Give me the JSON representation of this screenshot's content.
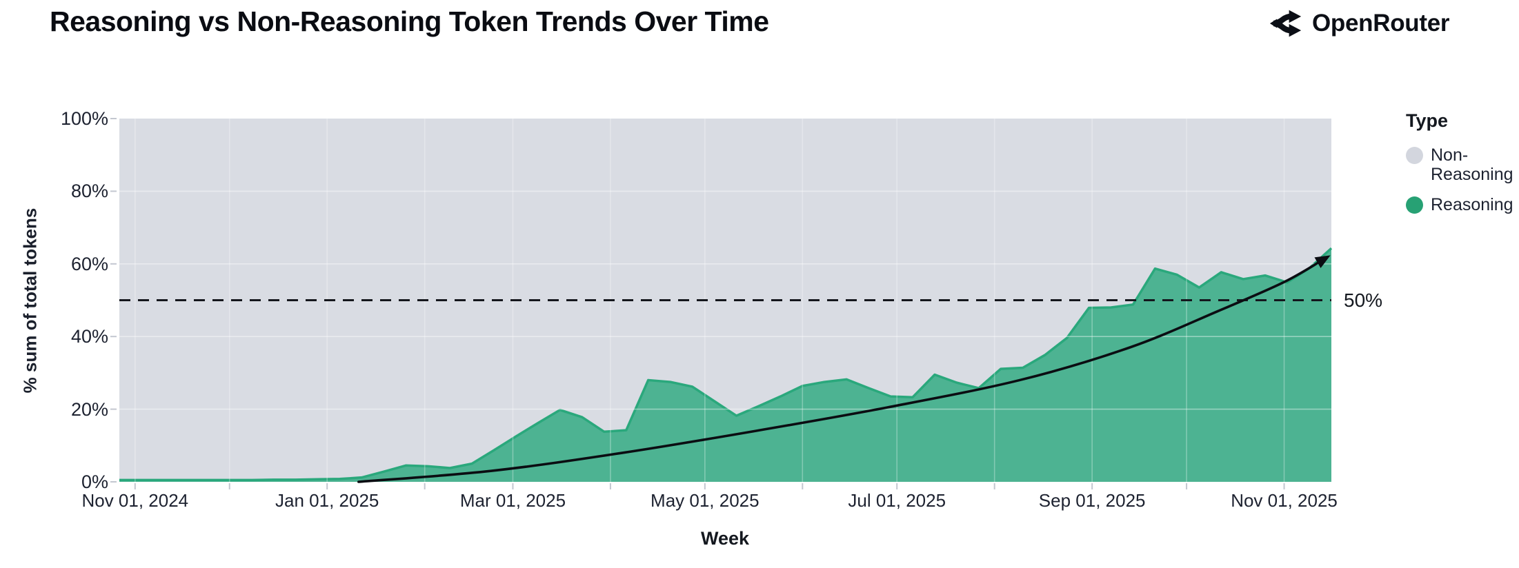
{
  "header": {
    "title": "Reasoning vs Non-Reasoning Token Trends Over Time",
    "brand": "OpenRouter"
  },
  "chart_data": {
    "type": "area",
    "stacked_percent": true,
    "title": "Reasoning vs Non-Reasoning Token Trends Over Time",
    "xlabel": "Week",
    "ylabel": "% sum of total tokens",
    "x_start": "2024-10-27",
    "x_end": "2025-11-16",
    "ylim": [
      0,
      100
    ],
    "grid": true,
    "legend_position": "right",
    "legend": {
      "title": "Type",
      "items": [
        {
          "label": "Non-Reasoning",
          "color": "#d3d6de"
        },
        {
          "label": "Reasoning",
          "color": "#27a174"
        }
      ]
    },
    "y_ticks": [
      {
        "label": "0%",
        "value": 0
      },
      {
        "label": "20%",
        "value": 20
      },
      {
        "label": "40%",
        "value": 40
      },
      {
        "label": "60%",
        "value": 60
      },
      {
        "label": "80%",
        "value": 80
      },
      {
        "label": "100%",
        "value": 100
      }
    ],
    "x_ticks": [
      {
        "label": "Nov 01, 2024",
        "date": "2024-11-01"
      },
      {
        "label": "Jan 01, 2025",
        "date": "2025-01-01"
      },
      {
        "label": "Mar 01, 2025",
        "date": "2025-03-01"
      },
      {
        "label": "May 01, 2025",
        "date": "2025-05-01"
      },
      {
        "label": "Jul 01, 2025",
        "date": "2025-07-01"
      },
      {
        "label": "Sep 01, 2025",
        "date": "2025-09-01"
      },
      {
        "label": "Nov 01, 2025",
        "date": "2025-11-01"
      }
    ],
    "x_minor_ticks": [
      "2024-11-01",
      "2024-12-01",
      "2025-01-01",
      "2025-02-01",
      "2025-03-01",
      "2025-04-01",
      "2025-05-01",
      "2025-06-01",
      "2025-07-01",
      "2025-08-01",
      "2025-09-01",
      "2025-10-01",
      "2025-11-01"
    ],
    "series": [
      {
        "name": "Reasoning",
        "fill": "#4db392",
        "stroke": "#2aa87c",
        "dates": [
          "2024-10-27",
          "2024-11-03",
          "2024-11-10",
          "2024-11-17",
          "2024-11-24",
          "2024-12-01",
          "2024-12-08",
          "2024-12-15",
          "2024-12-22",
          "2024-12-29",
          "2025-01-05",
          "2025-01-12",
          "2025-01-19",
          "2025-01-26",
          "2025-02-02",
          "2025-02-09",
          "2025-02-16",
          "2025-02-23",
          "2025-03-02",
          "2025-03-09",
          "2025-03-16",
          "2025-03-23",
          "2025-03-30",
          "2025-04-06",
          "2025-04-13",
          "2025-04-20",
          "2025-04-27",
          "2025-05-04",
          "2025-05-11",
          "2025-05-18",
          "2025-05-25",
          "2025-06-01",
          "2025-06-08",
          "2025-06-15",
          "2025-06-22",
          "2025-06-29",
          "2025-07-06",
          "2025-07-13",
          "2025-07-20",
          "2025-07-27",
          "2025-08-03",
          "2025-08-10",
          "2025-08-17",
          "2025-08-24",
          "2025-08-31",
          "2025-09-07",
          "2025-09-14",
          "2025-09-21",
          "2025-09-28",
          "2025-10-05",
          "2025-10-12",
          "2025-10-19",
          "2025-10-26",
          "2025-11-02",
          "2025-11-09",
          "2025-11-16"
        ],
        "values": [
          0.5,
          0.5,
          0.5,
          0.5,
          0.5,
          0.5,
          0.5,
          0.6,
          0.6,
          0.7,
          0.8,
          1.2,
          2.8,
          4.5,
          4.3,
          3.8,
          5.0,
          8.7,
          12.5,
          16.2,
          19.8,
          17.8,
          13.8,
          14.2,
          28.0,
          27.5,
          26.2,
          22.2,
          18.2,
          20.8,
          23.5,
          26.4,
          27.5,
          28.2,
          25.8,
          23.5,
          23.3,
          29.5,
          27.3,
          25.8,
          31.1,
          31.4,
          34.9,
          39.6,
          47.9,
          48.0,
          48.8,
          58.7,
          57.0,
          53.5,
          57.7,
          55.8,
          56.8,
          54.9,
          58.8,
          64.3
        ]
      },
      {
        "name": "Non-Reasoning",
        "fill": "#d9dce3",
        "note": "remainder to 100% (rendered as plot background of the 100% stacked area)"
      }
    ],
    "reference_line": {
      "value": 50,
      "label": "50%",
      "style": "dashed",
      "color": "#14161c"
    },
    "trend_line": {
      "color": "#0b0d12",
      "arrow_end": true,
      "points": [
        [
          "2025-01-11",
          0
        ],
        [
          "2025-02-22",
          3
        ],
        [
          "2025-04-05",
          8
        ],
        [
          "2025-05-17",
          14
        ],
        [
          "2025-06-28",
          20.5
        ],
        [
          "2025-08-09",
          28
        ],
        [
          "2025-09-13",
          37
        ],
        [
          "2025-10-11",
          47
        ],
        [
          "2025-11-01",
          55
        ],
        [
          "2025-11-14",
          61.5
        ]
      ]
    },
    "colors": {
      "plot_bg": "#d9dce3",
      "area_fill": "#4db392",
      "area_edge": "#2aa87c",
      "text": "#1d2230"
    }
  }
}
